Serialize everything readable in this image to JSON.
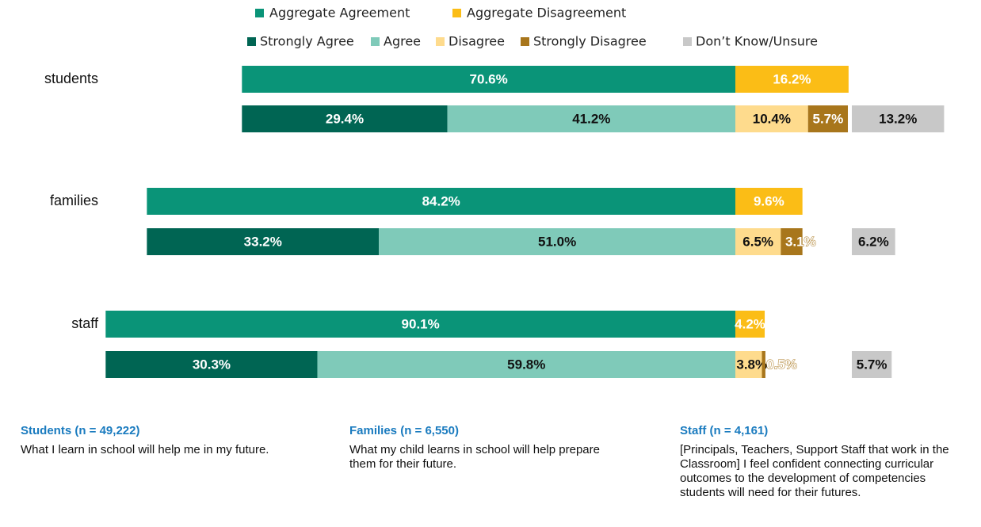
{
  "chart_data": {
    "type": "diverging_bar",
    "groups": [
      "students",
      "families",
      "staff"
    ],
    "aggregate_series": [
      {
        "name": "Aggregate Agreement",
        "color": "#0a9478",
        "values": [
          70.6,
          84.2,
          90.1
        ],
        "value_labels": [
          "70.6%",
          "84.2%",
          "90.1%"
        ]
      },
      {
        "name": "Aggregate Disagreement",
        "color": "#fbbd16",
        "values": [
          16.2,
          9.6,
          4.2
        ],
        "value_labels": [
          "16.2%",
          "9.6%",
          "4.2%"
        ]
      }
    ],
    "detail_series": [
      {
        "name": "Strongly Agree",
        "color": "#006553",
        "values": [
          29.4,
          33.2,
          30.3
        ],
        "value_labels": [
          "29.4%",
          "33.2%",
          "30.3%"
        ]
      },
      {
        "name": "Agree",
        "color": "#7fcab9",
        "values": [
          41.2,
          51.0,
          59.8
        ],
        "value_labels": [
          "41.2%",
          "51.0%",
          "59.8%"
        ]
      },
      {
        "name": "Disagree",
        "color": "#fedb8d",
        "values": [
          10.4,
          6.5,
          3.8
        ],
        "value_labels": [
          "10.4%",
          "6.5%",
          "3.8%"
        ]
      },
      {
        "name": "Strongly Disagree",
        "color": "#a8761c",
        "values": [
          5.7,
          3.1,
          0.5
        ],
        "value_labels": [
          "5.7%",
          "3.1%",
          "0.5%"
        ]
      },
      {
        "name": "Don’t Know/Unsure",
        "color": "#c8c8c8",
        "values": [
          13.2,
          6.2,
          5.7
        ],
        "value_labels": [
          "13.2%",
          "6.2%",
          "5.7%"
        ]
      }
    ],
    "notes": [
      {
        "heading": "Students (n = 49,222)",
        "text": "What I learn in school will help me in my future."
      },
      {
        "heading": "Families (n = 6,550)",
        "text": "What my child learns in school will help prepare them for their future."
      },
      {
        "heading": "Staff (n = 4,161)",
        "text": "[Principals, Teachers, Support Staff that work in the Classroom] I feel confident connecting curricular outcomes to the development of competencies students will need for their futures."
      }
    ]
  }
}
